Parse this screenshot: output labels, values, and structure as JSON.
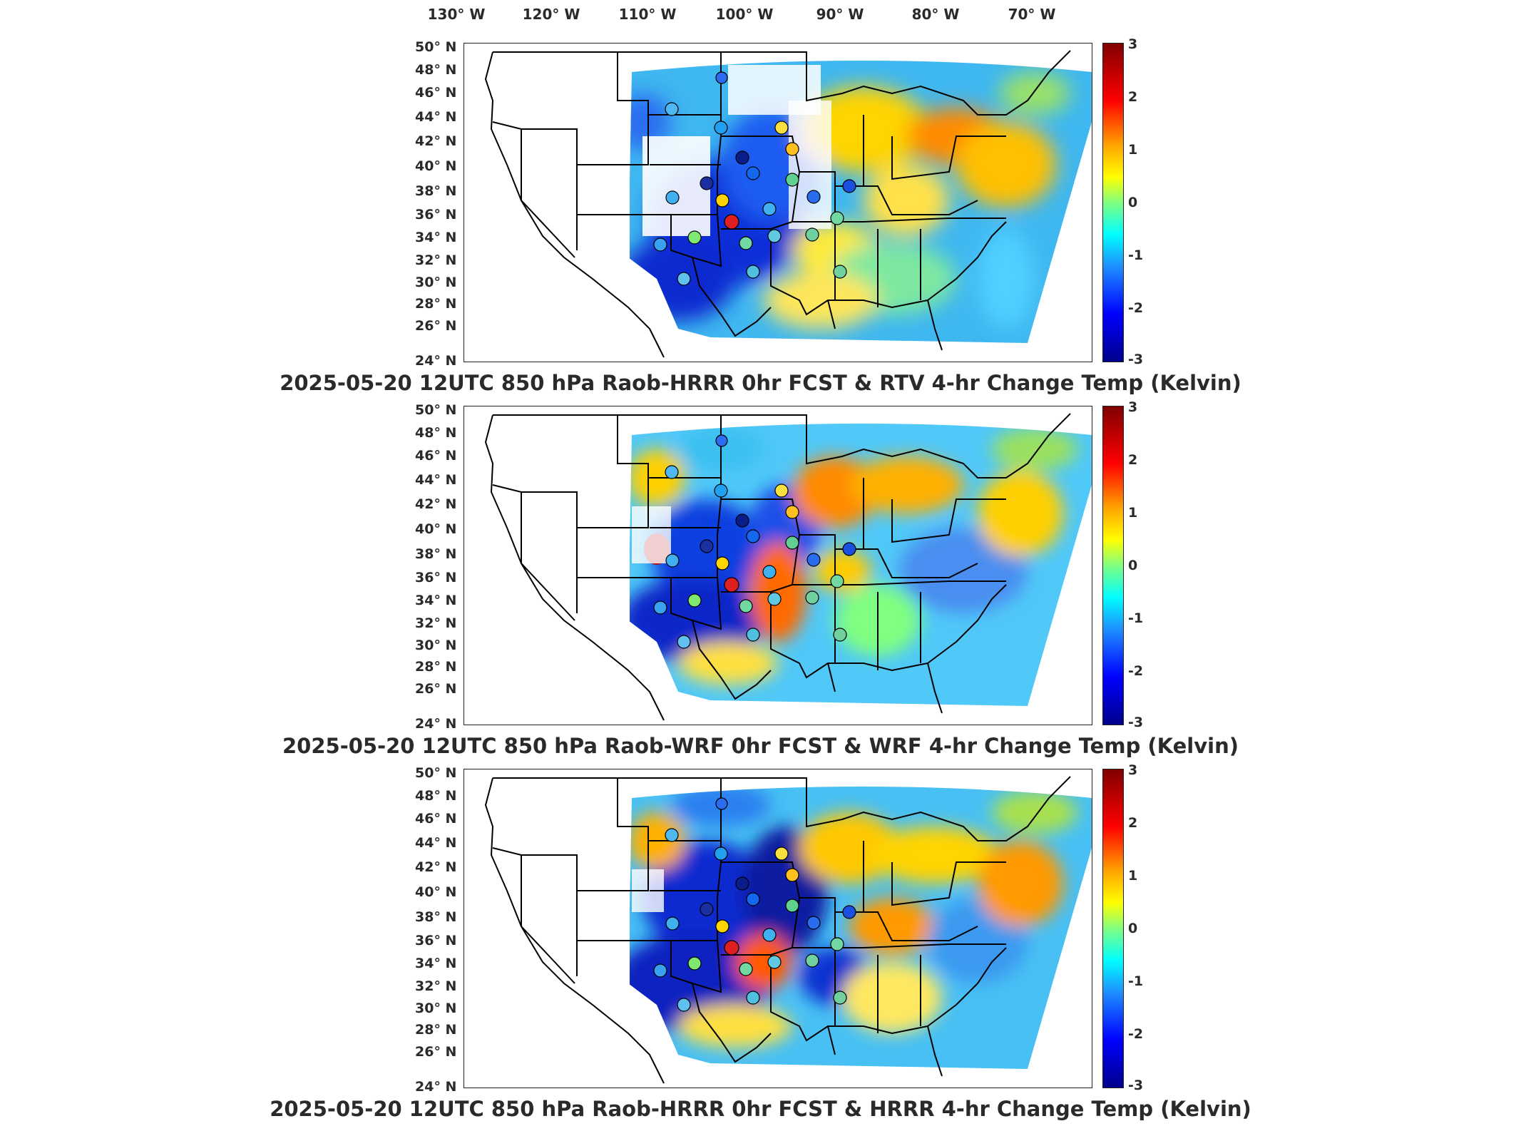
{
  "longitude_labels": [
    "130° W",
    "120° W",
    "110° W",
    "100° W",
    "90° W",
    "80° W",
    "70° W"
  ],
  "latitude_labels": [
    "50° N",
    "48° N",
    "46° N",
    "44° N",
    "42° N",
    "40° N",
    "38° N",
    "36° N",
    "34° N",
    "32° N",
    "30° N",
    "28° N",
    "26° N",
    "24° N"
  ],
  "colorbar": {
    "ticks": [
      "3",
      "2",
      "1",
      "0",
      "-1",
      "-2",
      "-3"
    ],
    "min": -3,
    "max": 3,
    "colormap": "jet"
  },
  "panels": [
    {
      "title": "2025-05-20 12UTC 850 hPa Raob-HRRR 0hr FCST & RTV 4-hr Change Temp (Kelvin)"
    },
    {
      "title": "2025-05-20 12UTC 850 hPa Raob-WRF 0hr FCST & WRF 4-hr Change Temp (Kelvin)"
    },
    {
      "title": "2025-05-20 12UTC 850 hPa Raob-HRRR 0hr FCST & HRRR 4-hr Change Temp (Kelvin)"
    }
  ]
}
